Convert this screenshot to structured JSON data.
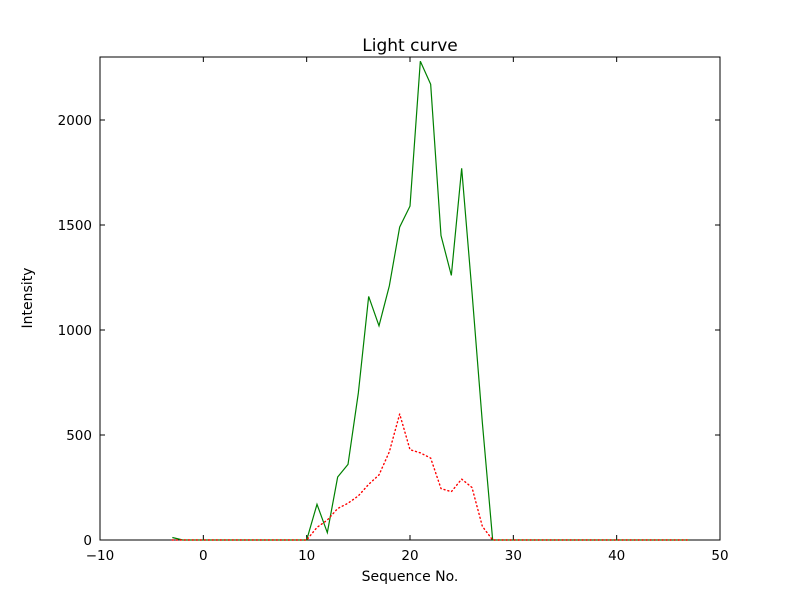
{
  "chart_data": {
    "type": "line",
    "title": "Light curve",
    "xlabel": "Sequence No.",
    "ylabel": "Intensity",
    "xlim": [
      -10,
      50
    ],
    "ylim": [
      0,
      2300
    ],
    "xticks": [
      -10,
      0,
      10,
      20,
      30,
      40,
      50
    ],
    "yticks": [
      0,
      500,
      1000,
      1500,
      2000
    ],
    "grid": false,
    "legend": "none",
    "x": [
      -3,
      -2,
      -1,
      0,
      1,
      2,
      3,
      4,
      5,
      6,
      7,
      8,
      9,
      10,
      11,
      12,
      13,
      14,
      15,
      16,
      17,
      18,
      19,
      20,
      21,
      22,
      23,
      24,
      25,
      26,
      27,
      28,
      29,
      30,
      31,
      32,
      33,
      34,
      35,
      36,
      37,
      38,
      39,
      40,
      41,
      42,
      43,
      44,
      45,
      46,
      47
    ],
    "series": [
      {
        "name": "green-solid-series",
        "color": "#008000",
        "style": "solid",
        "values": [
          12,
          0,
          0,
          0,
          0,
          0,
          0,
          0,
          0,
          0,
          0,
          0,
          0,
          0,
          170,
          35,
          300,
          360,
          700,
          1160,
          1020,
          1210,
          1490,
          1590,
          2280,
          2170,
          1450,
          1260,
          1770,
          1180,
          560,
          0,
          0,
          0,
          0,
          0,
          0,
          0,
          0,
          0,
          0,
          0,
          0,
          0,
          0,
          0,
          0,
          0,
          0,
          0,
          0
        ]
      },
      {
        "name": "red-dotted-series",
        "color": "#ff0000",
        "style": "dotted",
        "values": [
          0,
          0,
          0,
          0,
          0,
          0,
          0,
          0,
          0,
          0,
          0,
          0,
          0,
          0,
          60,
          95,
          150,
          175,
          210,
          265,
          310,
          420,
          600,
          430,
          415,
          390,
          245,
          230,
          290,
          250,
          65,
          0,
          0,
          0,
          0,
          0,
          0,
          0,
          0,
          0,
          0,
          0,
          0,
          0,
          0,
          0,
          0,
          0,
          0,
          0,
          0
        ]
      }
    ],
    "frame_color": "#000000",
    "background_color": "#ffffff"
  }
}
